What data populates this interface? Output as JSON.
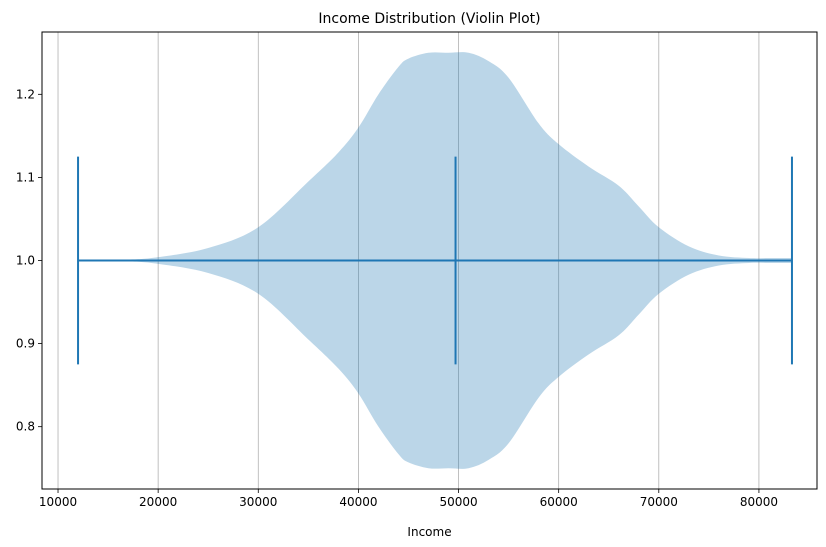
{
  "chart_data": {
    "type": "violin",
    "title": "Income Distribution (Violin Plot)",
    "xlabel": "Income",
    "ylabel": "",
    "orientation": "horizontal",
    "xlim": [
      8400,
      85800
    ],
    "ylim": [
      0.725,
      1.275
    ],
    "x_ticks": [
      10000,
      20000,
      30000,
      40000,
      50000,
      60000,
      70000,
      80000
    ],
    "x_tick_labels": [
      "10000",
      "20000",
      "30000",
      "40000",
      "50000",
      "60000",
      "70000",
      "80000"
    ],
    "y_ticks": [
      0.8,
      0.9,
      1.0,
      1.1,
      1.2
    ],
    "y_tick_labels": [
      "0.8",
      "0.9",
      "1.0",
      "1.1",
      "1.2"
    ],
    "grid": "x-axis vertical lines",
    "violin": {
      "position": 1.0,
      "min": 12000,
      "median": 49700,
      "max": 83300,
      "half_width_profile": {
        "x": [
          12000,
          17000,
          20000,
          25000,
          30000,
          35000,
          38000,
          40000,
          42000,
          44000,
          45000,
          47000,
          49000,
          51000,
          53000,
          55000,
          58000,
          60000,
          63000,
          66000,
          68000,
          70000,
          73000,
          76000,
          79000,
          81000,
          83300
        ],
        "half_width": [
          0.0,
          0.001,
          0.004,
          0.015,
          0.04,
          0.095,
          0.13,
          0.16,
          0.2,
          0.233,
          0.243,
          0.25,
          0.25,
          0.25,
          0.24,
          0.22,
          0.165,
          0.14,
          0.113,
          0.09,
          0.065,
          0.04,
          0.017,
          0.006,
          0.003,
          0.003,
          0.003
        ]
      }
    },
    "colors": {
      "body": "#1f77b4",
      "body_alpha": 0.3,
      "lines": "#1f77b4",
      "grid": "#b0b0b0"
    }
  }
}
